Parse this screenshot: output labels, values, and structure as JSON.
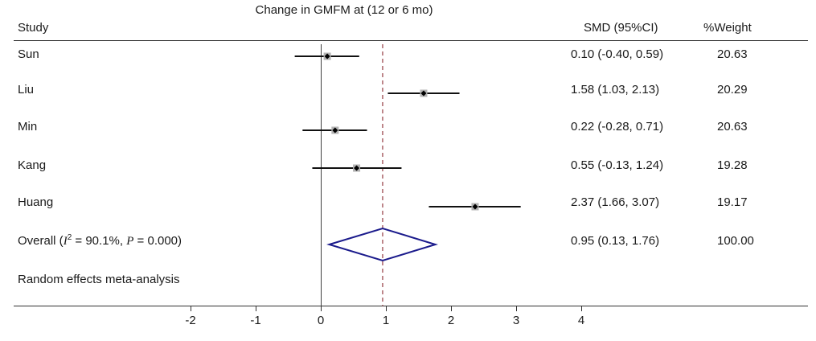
{
  "title": "Change in GMFM at (12 or 6 mo)",
  "columns": {
    "study": "Study",
    "smd": "SMD (95%CI)",
    "weight": "%Weight"
  },
  "overall_row": {
    "prefix": "Overall (",
    "i2_symbol": "I",
    "i2_sup": "2",
    "i2_rest": " = 90.1%, ",
    "p_symbol": "P",
    "p_rest": " = 0.000)"
  },
  "footer_note": "Random effects meta-analysis",
  "chart_data": {
    "type": "forest",
    "title": "Change in GMFM at (12 or 6 mo)",
    "xlabel": "",
    "x_ticks": [
      -2,
      -1,
      0,
      1,
      2,
      3,
      4
    ],
    "x_range": [
      -2.8,
      4.8
    ],
    "grid": false,
    "legend_position": "none",
    "null_line": 0,
    "pooled_line": 0.95,
    "studies": [
      {
        "name": "Sun",
        "est": 0.1,
        "lo": -0.4,
        "hi": 0.59,
        "smd_label": "0.10 (-0.40, 0.59)",
        "weight": "20.63"
      },
      {
        "name": "Liu",
        "est": 1.58,
        "lo": 1.03,
        "hi": 2.13,
        "smd_label": "1.58 (1.03, 2.13)",
        "weight": "20.29"
      },
      {
        "name": "Min",
        "est": 0.22,
        "lo": -0.28,
        "hi": 0.71,
        "smd_label": "0.22 (-0.28, 0.71)",
        "weight": "20.63"
      },
      {
        "name": "Kang",
        "est": 0.55,
        "lo": -0.13,
        "hi": 1.24,
        "smd_label": "0.55 (-0.13, 1.24)",
        "weight": "19.28"
      },
      {
        "name": "Huang",
        "est": 2.37,
        "lo": 1.66,
        "hi": 3.07,
        "smd_label": "2.37 (1.66, 3.07)",
        "weight": "19.17"
      }
    ],
    "overall": {
      "label": "Overall (I2 = 90.1%, P = 0.000)",
      "i_squared": "90.1%",
      "p_value": "0.000",
      "est": 0.95,
      "lo": 0.13,
      "hi": 1.76,
      "smd_label": "0.95 (0.13, 1.76)",
      "weight": "100.00"
    },
    "colors": {
      "text": "#1a1a1a",
      "rule_line": "#303030",
      "null_line": "#404040",
      "pooled_dashed_line": "#9c4a50",
      "ci_line": "#111111",
      "point_marker": "#000000",
      "weight_box": "#b3b3b3",
      "diamond": "#1b1b8c"
    }
  }
}
